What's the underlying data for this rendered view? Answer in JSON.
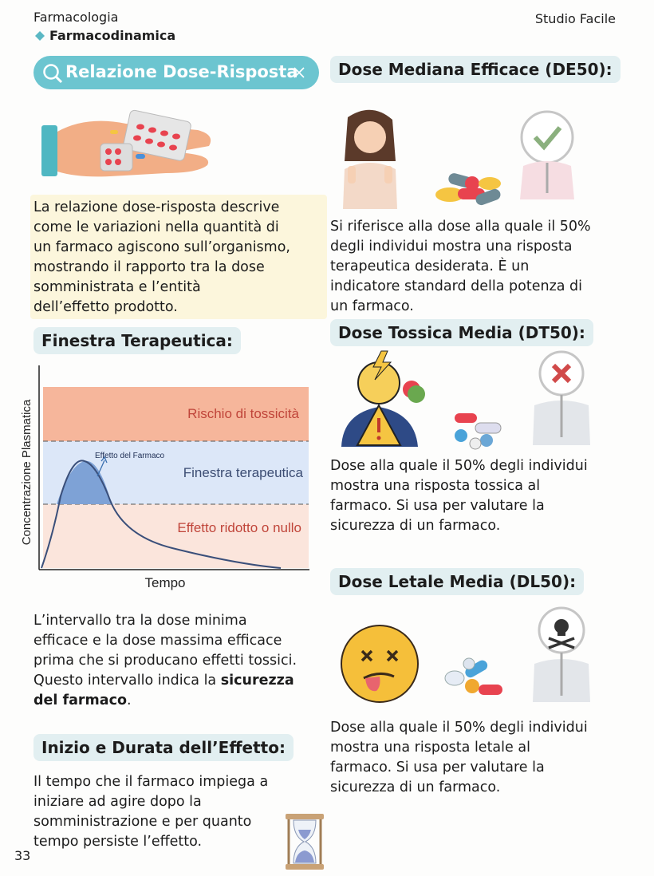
{
  "header": {
    "subject": "Farmacologia",
    "topic": "Farmacodinamica",
    "brand": "Studio Facile"
  },
  "search": {
    "query": "Relazione Dose-Risposta"
  },
  "intro": {
    "lines": [
      "La relazione dose-risposta descrive",
      "come le variazioni nella quantità di",
      "un farmaco agiscono sull’organismo,",
      "mostrando il rapporto tra la dose",
      "somministrata e l’entità",
      "dell’effetto prodotto."
    ]
  },
  "therapeutic_window": {
    "title": "Finestra Terapeutica:",
    "diagram": {
      "y_label": "Concentrazione Plasmatica",
      "x_label": "Tempo",
      "zones": [
        "Rischio di tossicità",
        "Finestra terapeutica",
        "Effetto ridotto o nullo"
      ],
      "annotation": "Effetto del Farmaco"
    },
    "lines": [
      [
        "L’intervallo tra la dose minima"
      ],
      [
        "efficace e la dose massima efficace"
      ],
      [
        "prima che si producano effetti tossici."
      ],
      [
        "Questo intervallo indica la ",
        {
          "text": "sicurezza",
          "bold": true
        }
      ],
      [
        {
          "text": "del farmaco",
          "bold": true
        },
        "."
      ]
    ]
  },
  "onset": {
    "title": "Inizio e Durata dell’Effetto:",
    "lines": [
      "Il tempo che il farmaco impiega a",
      "iniziare ad agire dopo la",
      "somministrazione e per quanto",
      "tempo persiste l’effetto."
    ]
  },
  "sections": [
    {
      "title": "Dose Mediana Efficace (DE50):",
      "lines": [
        "Si riferisce alla dose alla quale il 50%",
        "degli individui mostra una risposta",
        "terapeutica desiderata. È un",
        "indicatore standard della potenza di",
        "un farmaco."
      ]
    },
    {
      "title": "Dose Tossica Media (DT50):",
      "lines": [
        "Dose alla quale il 50% degli individui",
        "mostra una risposta tossica al",
        "farmaco. Si usa per valutare la",
        "sicurezza di un farmaco."
      ]
    },
    {
      "title": "Dose Letale Media (DL50):",
      "lines": [
        "Dose alla quale il 50% degli individui",
        "mostra una risposta letale al",
        "farmaco. Si usa per valutare la",
        "sicurezza di un farmaco."
      ]
    }
  ],
  "page_number": "33"
}
